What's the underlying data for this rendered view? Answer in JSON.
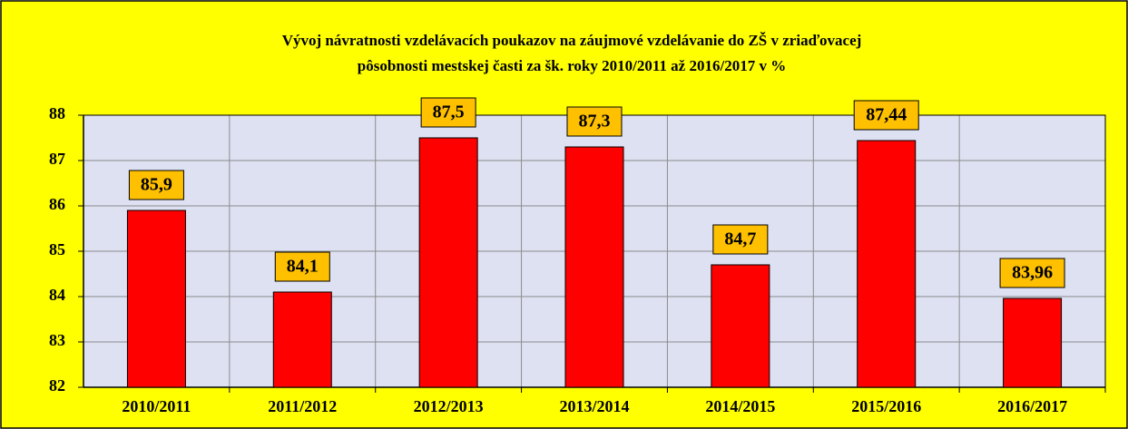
{
  "chart_data": {
    "type": "bar",
    "title": [
      "Vývoj návratnosti vzdelávacích poukazov na záujmové vzdelávanie do ZŠ v zriaďovacej",
      "pôsobnosti mestskej časti za šk. roky 2010/2011  až 2016/2017 v  %"
    ],
    "categories": [
      "2010/2011",
      "2011/2012",
      "2012/2013",
      "2013/2014",
      "2014/2015",
      "2015/2016",
      "2016/2017"
    ],
    "values": [
      85.9,
      84.1,
      87.5,
      87.3,
      84.7,
      87.44,
      83.96
    ],
    "value_labels": [
      "85,9",
      "84,1",
      "87,5",
      "87,3",
      "84,7",
      "87,44",
      "83,96"
    ],
    "color": "#ff0000",
    "ylim": [
      82,
      88
    ],
    "yticks": [
      82,
      83,
      84,
      85,
      86,
      87,
      88
    ],
    "grid": true
  }
}
